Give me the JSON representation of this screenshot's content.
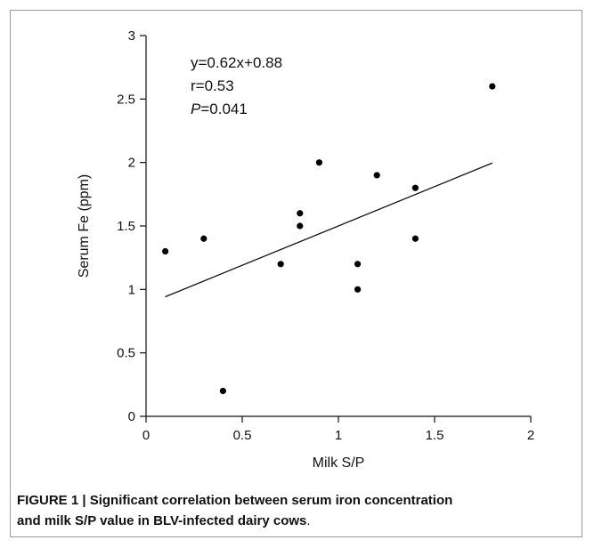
{
  "chart_data": {
    "type": "scatter",
    "xlabel": "Milk S/P",
    "ylabel": "Serum Fe (ppm)",
    "xlim": [
      0,
      2
    ],
    "ylim": [
      0,
      3
    ],
    "x_ticks": [
      0,
      0.5,
      1,
      1.5,
      2
    ],
    "x_tick_labels": [
      "0",
      "0.5",
      "1",
      "1.5",
      "2"
    ],
    "y_ticks": [
      0,
      0.5,
      1,
      1.5,
      2,
      2.5,
      3
    ],
    "y_tick_labels": [
      "0",
      "0.5",
      "1",
      "1.5",
      "2",
      "2.5",
      "3"
    ],
    "points": [
      {
        "x": 0.1,
        "y": 1.3
      },
      {
        "x": 0.3,
        "y": 1.4
      },
      {
        "x": 0.4,
        "y": 0.2
      },
      {
        "x": 0.7,
        "y": 1.2
      },
      {
        "x": 0.8,
        "y": 1.6
      },
      {
        "x": 0.8,
        "y": 1.5
      },
      {
        "x": 0.9,
        "y": 2.0
      },
      {
        "x": 1.1,
        "y": 1.2
      },
      {
        "x": 1.1,
        "y": 1.0
      },
      {
        "x": 1.2,
        "y": 1.9
      },
      {
        "x": 1.4,
        "y": 1.8
      },
      {
        "x": 1.4,
        "y": 1.4
      },
      {
        "x": 1.8,
        "y": 2.6
      }
    ],
    "trendline": {
      "x_start": 0.1,
      "x_end": 1.8,
      "slope": 0.62,
      "intercept": 0.88
    },
    "annotations": {
      "equation": "y=0.62x+0.88",
      "r": "r=0.53",
      "p_label": "P",
      "p_value": "=0.041"
    },
    "grid": false
  },
  "caption": {
    "lead": "FIGURE 1 | Significant correlation between serum iron concentration",
    "rest": "and milk S/P value in BLV-infected dairy cows",
    "end": "."
  }
}
